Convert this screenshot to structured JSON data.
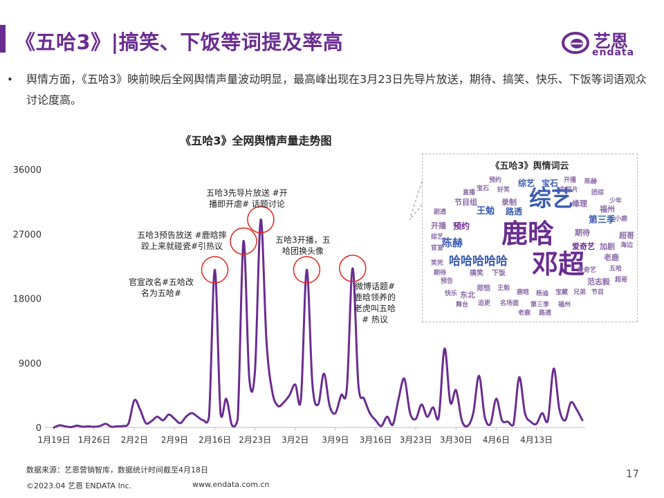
{
  "header": {
    "title": "《五哈3》|搞笑、下饭等词提及率高"
  },
  "logo": {
    "cn": "艺恩",
    "en": "endata",
    "color": "#6a2c91"
  },
  "summary": {
    "bullet": "•",
    "text": "舆情方面，《五哈3》映前映后全网舆情声量波动明显，最高峰出现在3月23日先导片放送，期待、搞笑、快乐、下饭等词语观众讨论度高。"
  },
  "chart_data": {
    "type": "line",
    "title": "《五哈3》全网舆情声量走势图",
    "x_tick_labels": [
      "1月19日",
      "1月26日",
      "2月2日",
      "2月9日",
      "2月16日",
      "2月23日",
      "3月2日",
      "3月9日",
      "3月16日",
      "3月23日",
      "3月30日",
      "4月6日",
      "4月13日"
    ],
    "y_ticks": [
      0,
      9000,
      18000,
      27000,
      36000
    ],
    "ylim": [
      0,
      36000
    ],
    "x_range_days": [
      0,
      90
    ],
    "line_color": "#6a2c91",
    "annotation_color": "#e0251b",
    "series": [
      {
        "points": [
          [
            0,
            0
          ],
          [
            1,
            300
          ],
          [
            2,
            150
          ],
          [
            3,
            50
          ],
          [
            4,
            250
          ],
          [
            5,
            100
          ],
          [
            6,
            150
          ],
          [
            7,
            100
          ],
          [
            8,
            200
          ],
          [
            9,
            500
          ],
          [
            10,
            100
          ],
          [
            11,
            150
          ],
          [
            12,
            200
          ],
          [
            13,
            600
          ],
          [
            14,
            3800
          ],
          [
            15,
            2500
          ],
          [
            16,
            600
          ],
          [
            17,
            900
          ],
          [
            18,
            1500
          ],
          [
            19,
            1000
          ],
          [
            20,
            1800
          ],
          [
            21,
            1200
          ],
          [
            22,
            600
          ],
          [
            23,
            1500
          ],
          [
            24,
            2000
          ],
          [
            25,
            1500
          ],
          [
            26,
            1000
          ],
          [
            27,
            1500
          ],
          [
            28,
            22000
          ],
          [
            29,
            2000
          ],
          [
            30,
            4000
          ],
          [
            31,
            300
          ],
          [
            32,
            1200
          ],
          [
            33,
            26000
          ],
          [
            34,
            7000
          ],
          [
            35,
            8000
          ],
          [
            36,
            29000
          ],
          [
            37,
            12000
          ],
          [
            38,
            5000
          ],
          [
            39,
            3000
          ],
          [
            40,
            3500
          ],
          [
            41,
            4500
          ],
          [
            42,
            6000
          ],
          [
            43,
            4000
          ],
          [
            44,
            22000
          ],
          [
            45,
            6000
          ],
          [
            46,
            3200
          ],
          [
            47,
            7500
          ],
          [
            48,
            3000
          ],
          [
            49,
            2000
          ],
          [
            50,
            4500
          ],
          [
            51,
            5500
          ],
          [
            52,
            22200
          ],
          [
            53,
            6000
          ],
          [
            54,
            4000
          ],
          [
            55,
            2000
          ],
          [
            56,
            1000
          ],
          [
            57,
            200
          ],
          [
            58,
            1500
          ],
          [
            59,
            400
          ],
          [
            60,
            4000
          ],
          [
            61,
            6800
          ],
          [
            62,
            2000
          ],
          [
            63,
            1200
          ],
          [
            64,
            3200
          ],
          [
            65,
            1500
          ],
          [
            66,
            2800
          ],
          [
            67,
            1500
          ],
          [
            68,
            11000
          ],
          [
            69,
            3500
          ],
          [
            70,
            5200
          ],
          [
            71,
            1000
          ],
          [
            72,
            200
          ],
          [
            73,
            2000
          ],
          [
            74,
            7200
          ],
          [
            75,
            1500
          ],
          [
            76,
            500
          ],
          [
            77,
            4000
          ],
          [
            78,
            1000
          ],
          [
            79,
            800
          ],
          [
            80,
            400
          ],
          [
            81,
            7000
          ],
          [
            82,
            2000
          ],
          [
            83,
            800
          ],
          [
            84,
            500
          ],
          [
            85,
            2000
          ],
          [
            86,
            1000
          ],
          [
            87,
            8200
          ],
          [
            88,
            2500
          ],
          [
            89,
            1000
          ],
          [
            90,
            3500
          ],
          [
            91,
            2500
          ],
          [
            92,
            1000
          ]
        ]
      }
    ],
    "annotations": [
      {
        "text_lines": [
          "官宣改名#五哈改",
          "名为五哈#"
        ],
        "circle_day": 28,
        "circle_value": 22000
      },
      {
        "text_lines": [
          "五哈3预告放送 #鹿晗摔",
          "跤上来就碰瓷#引热议"
        ],
        "circle_day": 33,
        "circle_value": 26000
      },
      {
        "text_lines": [
          "五哈3先导片放送 #开",
          "播即开虐# 话题讨论"
        ],
        "circle_day": 36,
        "circle_value": 29000
      },
      {
        "text_lines": [
          "五哈3开播，五",
          "哈团换头像"
        ],
        "circle_day": 44,
        "circle_value": 22000
      },
      {
        "text_lines": [
          "微博话题#",
          "鹿晗领养的",
          "老虎叫五哈",
          "# 热议"
        ],
        "circle_day": 52,
        "circle_value": 22200
      }
    ]
  },
  "word_cloud": {
    "title": "《五哈3》舆情词云",
    "words": [
      {
        "text": "鹿晗",
        "color": "#6a2c91"
      },
      {
        "text": "邓超",
        "color": "#6a2c91"
      },
      {
        "text": "综艺",
        "color": "#3a5bb0"
      },
      {
        "text": "哈哈哈哈哈",
        "color": "#3a5bb0"
      },
      {
        "text": "陈赫",
        "color": "#3a5bb0"
      },
      {
        "text": "王勉",
        "color": "#3a5bb0"
      },
      {
        "text": "综艺",
        "color": "#3a5bb0"
      },
      {
        "text": "宝石",
        "color": "#3a5bb0"
      },
      {
        "text": "第三季",
        "color": "#3a5bb0"
      },
      {
        "text": "路透",
        "color": "#3a5bb0"
      },
      {
        "text": "预约",
        "color": "#6a2c91"
      },
      {
        "text": "节目组",
        "color": "#8a6aa8"
      },
      {
        "text": "开播",
        "color": "#8a6aa8"
      },
      {
        "text": "录制",
        "color": "#8a6aa8"
      },
      {
        "text": "期待",
        "color": "#8a6aa8"
      },
      {
        "text": "范志毅",
        "color": "#8a6aa8"
      },
      {
        "text": "爱奇艺",
        "color": "#6a2c91"
      },
      {
        "text": "缘理",
        "color": "#8a6aa8"
      },
      {
        "text": "福州",
        "color": "#8a6aa8"
      },
      {
        "text": "超哥",
        "color": "#8a6aa8"
      },
      {
        "text": "加剧",
        "color": "#8a6aa8"
      },
      {
        "text": "东北",
        "color": "#8a6aa8"
      },
      {
        "text": "老鹿",
        "color": "#8a6aa8"
      },
      {
        "text": "宝石",
        "color": "#8a6aa8"
      },
      {
        "text": "好笑",
        "color": "#8a6aa8"
      },
      {
        "text": "预告",
        "color": "#8a6aa8"
      },
      {
        "text": "搞笑",
        "color": "#8a6aa8"
      },
      {
        "text": "下饭",
        "color": "#8a6aa8"
      },
      {
        "text": "快乐",
        "color": "#8a6aa8"
      },
      {
        "text": "期待",
        "color": "#8a6aa8"
      },
      {
        "text": "郑恺",
        "color": "#8a6aa8"
      },
      {
        "text": "王勉",
        "color": "#8a6aa8"
      },
      {
        "text": "鹿晗",
        "color": "#8a6aa8"
      },
      {
        "text": "杨迪",
        "color": "#8a6aa8"
      },
      {
        "text": "宝藏",
        "color": "#8a6aa8"
      },
      {
        "text": "兄弟",
        "color": "#8a6aa8"
      },
      {
        "text": "节目",
        "color": "#8a6aa8"
      },
      {
        "text": "五哈",
        "color": "#8a6aa8"
      },
      {
        "text": "官宣",
        "color": "#8a6aa8"
      },
      {
        "text": "剧透",
        "color": "#8a6aa8"
      },
      {
        "text": "直播",
        "color": "#8a6aa8"
      },
      {
        "text": "先导片",
        "color": "#8a6aa8"
      },
      {
        "text": "团综",
        "color": "#8a6aa8"
      },
      {
        "text": "少年",
        "color": "#8a6aa8"
      },
      {
        "text": "小鹿",
        "color": "#8a6aa8"
      },
      {
        "text": "海边",
        "color": "#8a6aa8"
      },
      {
        "text": "笑死",
        "color": "#8a6aa8"
      },
      {
        "text": "舞台",
        "color": "#8a6aa8"
      },
      {
        "text": "追更",
        "color": "#8a6aa8"
      },
      {
        "text": "名场面",
        "color": "#8a6aa8"
      },
      {
        "text": "第三季",
        "color": "#8a6aa8"
      },
      {
        "text": "福州",
        "color": "#8a6aa8"
      },
      {
        "text": "预约",
        "color": "#8a6aa8"
      },
      {
        "text": "开播",
        "color": "#8a6aa8"
      },
      {
        "text": "陈赫",
        "color": "#8a6aa8"
      },
      {
        "text": "爱奇艺",
        "color": "#8a6aa8"
      },
      {
        "text": "综艺",
        "color": "#8a6aa8"
      },
      {
        "text": "超哥",
        "color": "#8a6aa8"
      },
      {
        "text": "老鹿",
        "color": "#8a6aa8"
      },
      {
        "text": "路透",
        "color": "#8a6aa8"
      }
    ]
  },
  "footer": {
    "source": "数据来源：艺恩营销智库，数据统计时间截至4月18日",
    "copyright": "©2023.04 艺恩 ENDATA Inc.",
    "url": "www.endata.com.cn",
    "page": "17"
  }
}
